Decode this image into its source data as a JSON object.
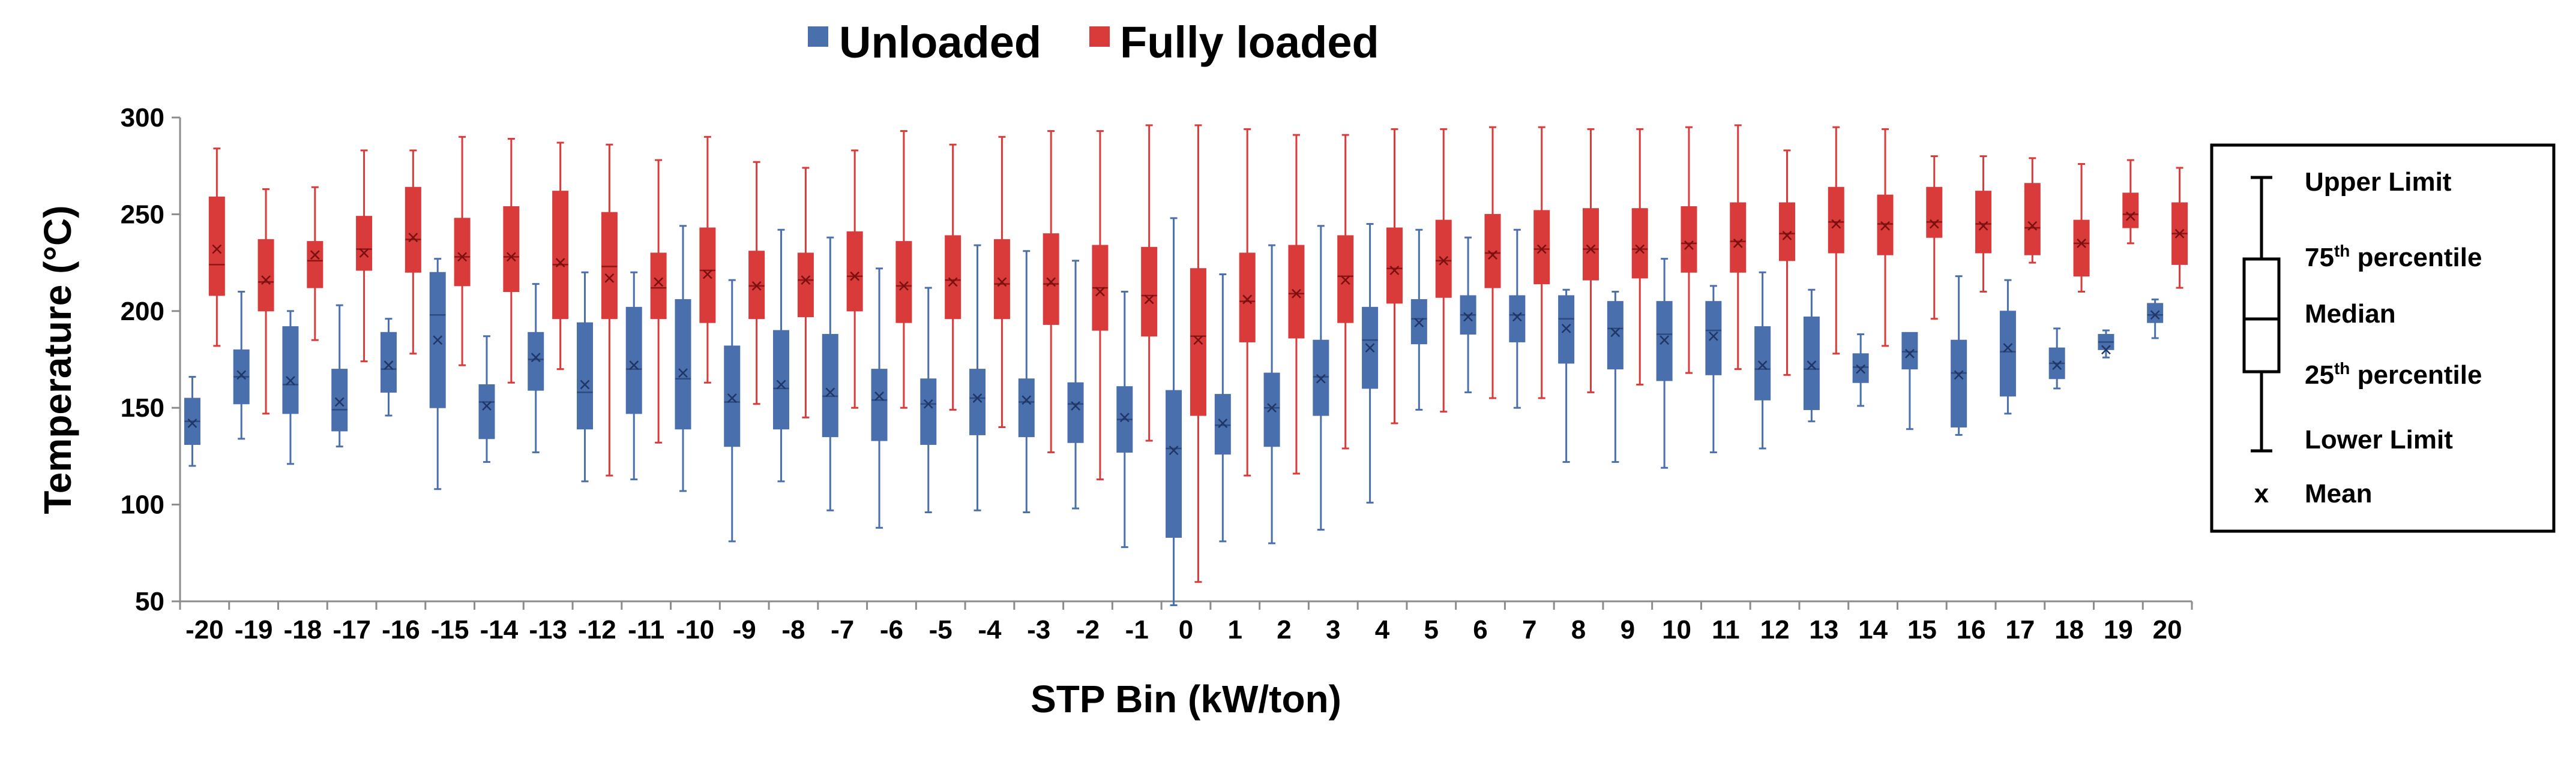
{
  "chart_data": {
    "type": "box",
    "title": "",
    "xlabel": "STP Bin (kW/ton)",
    "ylabel": "Temperature (°C)",
    "ylim": [
      50,
      300
    ],
    "yticks": [
      "50",
      "100",
      "150",
      "200",
      "250",
      "300"
    ],
    "categories": [
      "-20",
      "-19",
      "-18",
      "-17",
      "-16",
      "-15",
      "-14",
      "-13",
      "-12",
      "-11",
      "-10",
      "-9",
      "-8",
      "-7",
      "-6",
      "-5",
      "-4",
      "-3",
      "-2",
      "-1",
      "0",
      "1",
      "2",
      "3",
      "4",
      "5",
      "6",
      "7",
      "8",
      "9",
      "10",
      "11",
      "12",
      "13",
      "14",
      "15",
      "16",
      "17",
      "18",
      "19",
      "20"
    ],
    "legend": {
      "position": "top",
      "entries": [
        "Unloaded",
        "Fully loaded"
      ]
    },
    "series": [
      {
        "name": "Unloaded",
        "color": "#4a6fad",
        "min": [
          120,
          134,
          121,
          130,
          146,
          108,
          122,
          127,
          112,
          113,
          107,
          81,
          112,
          97,
          88,
          96,
          97,
          96,
          98,
          78,
          48,
          81,
          80,
          87,
          101,
          149,
          158,
          150,
          122,
          122,
          119,
          127,
          129,
          143,
          151,
          139,
          136,
          147,
          160,
          176,
          186
        ],
        "q1": [
          131,
          152,
          147,
          138,
          158,
          150,
          134,
          159,
          139,
          147,
          139,
          130,
          139,
          135,
          133,
          131,
          136,
          135,
          132,
          127,
          83,
          126,
          130,
          146,
          160,
          183,
          188,
          184,
          173,
          170,
          164,
          167,
          154,
          149,
          163,
          170,
          140,
          156,
          165,
          180,
          194
        ],
        "median": [
          143,
          166,
          162,
          149,
          170,
          198,
          153,
          175,
          158,
          170,
          165,
          153,
          160,
          156,
          154,
          152,
          155,
          153,
          152,
          144,
          129,
          141,
          150,
          166,
          185,
          196,
          198,
          198,
          196,
          191,
          188,
          190,
          170,
          170,
          171,
          179,
          168,
          179,
          173,
          184,
          198
        ],
        "q3": [
          155,
          180,
          192,
          170,
          189,
          220,
          162,
          189,
          194,
          202,
          206,
          182,
          190,
          188,
          170,
          165,
          170,
          165,
          163,
          161,
          159,
          157,
          168,
          185,
          202,
          206,
          208,
          208,
          208,
          205,
          205,
          205,
          192,
          197,
          178,
          189,
          185,
          200,
          181,
          188,
          204
        ],
        "max": [
          166,
          210,
          200,
          203,
          196,
          227,
          187,
          214,
          220,
          220,
          244,
          216,
          242,
          238,
          222,
          212,
          234,
          231,
          226,
          210,
          248,
          219,
          234,
          244,
          245,
          242,
          238,
          242,
          211,
          210,
          227,
          213,
          220,
          211,
          188,
          186,
          218,
          216,
          191,
          190,
          206
        ],
        "mean": [
          142,
          167,
          164,
          153,
          172,
          185,
          151,
          176,
          162,
          172,
          168,
          155,
          162,
          158,
          156,
          152,
          155,
          154,
          151,
          145,
          128,
          142,
          150,
          165,
          181,
          194,
          197,
          197,
          191,
          189,
          185,
          187,
          172,
          172,
          170,
          178,
          167,
          181,
          172,
          180,
          198
        ]
      },
      {
        "name": "Fully loaded",
        "color": "#d93a3a",
        "min": [
          182,
          147,
          185,
          174,
          178,
          172,
          163,
          170,
          115,
          132,
          163,
          152,
          145,
          150,
          150,
          149,
          140,
          127,
          113,
          133,
          60,
          115,
          116,
          129,
          142,
          148,
          155,
          155,
          158,
          162,
          168,
          170,
          167,
          178,
          182,
          196,
          210,
          225,
          210,
          235,
          212
        ],
        "q1": [
          208,
          200,
          212,
          221,
          220,
          213,
          210,
          196,
          196,
          196,
          194,
          196,
          197,
          200,
          194,
          196,
          196,
          193,
          190,
          187,
          146,
          184,
          186,
          194,
          204,
          207,
          212,
          214,
          216,
          217,
          220,
          220,
          226,
          230,
          229,
          238,
          230,
          229,
          218,
          243,
          224
        ],
        "median": [
          224,
          215,
          226,
          232,
          237,
          228,
          228,
          224,
          223,
          212,
          221,
          213,
          216,
          218,
          213,
          216,
          214,
          214,
          212,
          208,
          187,
          205,
          209,
          218,
          222,
          226,
          230,
          232,
          232,
          232,
          235,
          236,
          240,
          246,
          245,
          246,
          245,
          243,
          235,
          250,
          240
        ],
        "q3": [
          259,
          237,
          236,
          249,
          264,
          248,
          254,
          262,
          251,
          230,
          243,
          231,
          230,
          241,
          236,
          239,
          237,
          240,
          234,
          233,
          222,
          230,
          234,
          239,
          243,
          247,
          250,
          252,
          253,
          253,
          254,
          256,
          256,
          264,
          260,
          264,
          262,
          266,
          247,
          261,
          256
        ],
        "max": [
          284,
          263,
          264,
          283,
          283,
          290,
          289,
          287,
          286,
          278,
          290,
          277,
          274,
          283,
          293,
          286,
          290,
          293,
          293,
          296,
          296,
          294,
          291,
          291,
          294,
          294,
          295,
          295,
          294,
          294,
          295,
          296,
          283,
          295,
          294,
          280,
          280,
          279,
          276,
          278,
          274
        ],
        "mean": [
          232,
          216,
          229,
          230,
          238,
          228,
          228,
          225,
          217,
          215,
          219,
          213,
          216,
          218,
          213,
          215,
          215,
          215,
          210,
          206,
          185,
          206,
          209,
          216,
          221,
          226,
          229,
          232,
          232,
          232,
          234,
          235,
          239,
          245,
          244,
          245,
          244,
          244,
          235,
          249,
          240
        ]
      }
    ],
    "key": {
      "upper_limit": "Upper Limit",
      "p75": "75",
      "p75_sup": "th",
      "p75_rest": " percentile",
      "median": "Median",
      "p25": "25",
      "p25_sup": "th",
      "p25_rest": " percentile",
      "lower_limit": "Lower Limit",
      "mean_symbol": "x",
      "mean": "Mean"
    }
  }
}
